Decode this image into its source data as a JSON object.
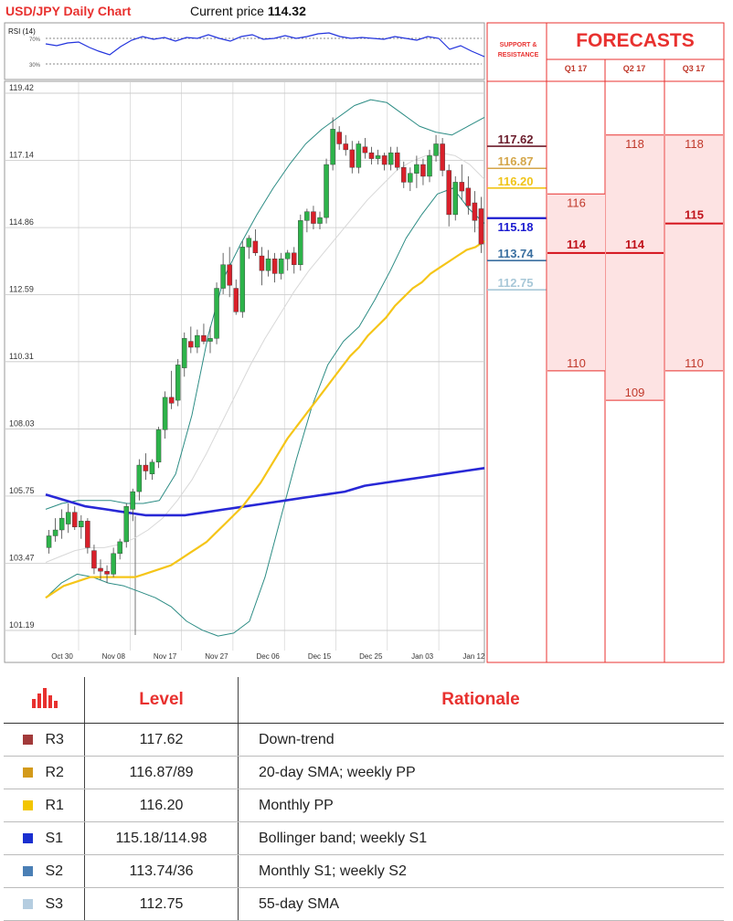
{
  "header": {
    "title": "USD/JPY Daily Chart",
    "price_label": "Current price",
    "price_value": "114.32"
  },
  "rsi": {
    "label": "RSI (14)",
    "upper": "70%",
    "lower": "30%"
  },
  "chart_data": {
    "type": "candlestick",
    "y_ticks": [
      "119.42",
      "117.14",
      "114.86",
      "112.59",
      "110.31",
      "108.03",
      "105.75",
      "103.47",
      "101.19"
    ],
    "ylim": [
      101.19,
      119.42
    ],
    "x_ticks": [
      "Oct 30",
      "Nov 08",
      "Nov 17",
      "Nov 27",
      "Dec 06",
      "Dec 15",
      "Dec 25",
      "Jan 03",
      "Jan 12"
    ],
    "candles": [
      [
        104.0,
        104.6,
        103.8,
        104.4
      ],
      [
        104.4,
        105.0,
        104.2,
        104.6
      ],
      [
        104.6,
        105.3,
        104.3,
        105.0
      ],
      [
        104.8,
        105.5,
        104.5,
        105.2
      ],
      [
        105.2,
        105.4,
        104.6,
        104.7
      ],
      [
        104.7,
        105.1,
        104.3,
        104.9
      ],
      [
        104.9,
        105.0,
        103.8,
        104.0
      ],
      [
        103.9,
        104.1,
        103.1,
        103.3
      ],
      [
        103.3,
        103.6,
        102.9,
        103.2
      ],
      [
        103.2,
        103.4,
        102.8,
        103.1
      ],
      [
        103.1,
        104.0,
        103.0,
        103.8
      ],
      [
        103.8,
        104.3,
        103.6,
        104.2
      ],
      [
        104.2,
        105.5,
        104.0,
        105.4
      ],
      [
        105.3,
        106.0,
        104.9,
        105.9
      ],
      [
        105.9,
        107.0,
        105.6,
        106.8
      ],
      [
        106.8,
        107.2,
        106.3,
        106.6
      ],
      [
        106.5,
        107.0,
        106.3,
        106.9
      ],
      [
        106.9,
        108.1,
        106.7,
        108.0
      ],
      [
        108.0,
        109.3,
        107.7,
        109.1
      ],
      [
        109.1,
        110.0,
        108.7,
        108.9
      ],
      [
        109.0,
        110.4,
        108.8,
        110.2
      ],
      [
        110.1,
        111.3,
        109.8,
        111.1
      ],
      [
        111.0,
        111.5,
        110.6,
        110.8
      ],
      [
        110.8,
        111.4,
        110.6,
        111.2
      ],
      [
        111.2,
        111.6,
        110.9,
        111.0
      ],
      [
        111.0,
        111.5,
        110.6,
        111.1
      ],
      [
        111.1,
        113.0,
        110.9,
        112.8
      ],
      [
        112.8,
        114.0,
        112.6,
        113.6
      ],
      [
        113.6,
        114.2,
        112.5,
        112.9
      ],
      [
        112.8,
        113.1,
        111.9,
        112.0
      ],
      [
        112.0,
        114.4,
        111.8,
        114.2
      ],
      [
        114.2,
        114.6,
        113.8,
        114.5
      ],
      [
        114.4,
        114.8,
        113.9,
        114.0
      ],
      [
        113.9,
        114.2,
        112.9,
        113.4
      ],
      [
        113.4,
        114.1,
        113.2,
        113.8
      ],
      [
        113.8,
        114.0,
        113.0,
        113.3
      ],
      [
        113.3,
        114.0,
        113.1,
        113.8
      ],
      [
        113.8,
        114.1,
        113.4,
        114.0
      ],
      [
        114.0,
        114.2,
        113.3,
        113.6
      ],
      [
        113.6,
        115.3,
        113.4,
        115.1
      ],
      [
        115.1,
        115.5,
        114.7,
        115.4
      ],
      [
        115.4,
        115.6,
        114.8,
        115.0
      ],
      [
        115.0,
        115.4,
        114.8,
        115.2
      ],
      [
        115.2,
        117.2,
        115.0,
        117.0
      ],
      [
        117.0,
        118.6,
        116.8,
        118.2
      ],
      [
        118.1,
        118.3,
        117.5,
        117.7
      ],
      [
        117.7,
        118.0,
        117.3,
        117.5
      ],
      [
        117.5,
        117.8,
        116.7,
        116.9
      ],
      [
        116.9,
        117.8,
        116.7,
        117.7
      ],
      [
        117.6,
        117.9,
        117.2,
        117.4
      ],
      [
        117.4,
        117.6,
        117.0,
        117.2
      ],
      [
        117.2,
        117.5,
        117.0,
        117.3
      ],
      [
        117.3,
        117.4,
        116.8,
        117.0
      ],
      [
        117.0,
        117.6,
        116.8,
        117.4
      ],
      [
        117.4,
        117.6,
        116.8,
        116.9
      ],
      [
        116.9,
        117.1,
        116.2,
        116.4
      ],
      [
        116.4,
        116.9,
        116.1,
        116.7
      ],
      [
        116.7,
        117.3,
        116.2,
        117.0
      ],
      [
        117.0,
        117.2,
        116.3,
        116.6
      ],
      [
        116.6,
        117.5,
        116.4,
        117.3
      ],
      [
        117.3,
        118.0,
        117.1,
        117.7
      ],
      [
        117.7,
        117.9,
        116.6,
        116.8
      ],
      [
        116.8,
        117.0,
        114.9,
        115.3
      ],
      [
        115.3,
        116.6,
        115.1,
        116.4
      ],
      [
        116.4,
        117.0,
        115.8,
        116.1
      ],
      [
        116.2,
        116.6,
        115.3,
        115.6
      ],
      [
        115.7,
        116.1,
        114.7,
        115.1
      ],
      [
        115.5,
        115.9,
        114.0,
        114.3
      ]
    ],
    "sma55": [
      102.3,
      102.5,
      102.7,
      102.8,
      102.9,
      103.0,
      103.0,
      103.0,
      103.0,
      103.0,
      103.0,
      103.1,
      103.2,
      103.3,
      103.4,
      103.6,
      103.8,
      104.0,
      104.2,
      104.5,
      104.8,
      105.1,
      105.4,
      105.8,
      106.2,
      106.7,
      107.2,
      107.7,
      108.1,
      108.5,
      108.9,
      109.3,
      109.7,
      110.1,
      110.5,
      110.8,
      111.2,
      111.5,
      111.8,
      112.2,
      112.5,
      112.8,
      113.0,
      113.3,
      113.5,
      113.7,
      113.9,
      114.1,
      114.2,
      114.4
    ],
    "sma200": [
      105.8,
      105.6,
      105.4,
      105.3,
      105.2,
      105.1,
      105.1,
      105.1,
      105.2,
      105.3,
      105.4,
      105.5,
      105.6,
      105.7,
      105.8,
      105.9,
      106.1,
      106.2,
      106.3,
      106.4,
      106.5,
      106.6,
      106.7
    ],
    "bb_upper": [
      105.3,
      105.5,
      105.6,
      105.6,
      105.6,
      105.5,
      105.5,
      105.6,
      106.5,
      108.5,
      111.2,
      113.2,
      114.3,
      115.3,
      116.2,
      117.0,
      117.7,
      118.2,
      118.6,
      119.0,
      119.2,
      119.1,
      118.7,
      118.3,
      118.1,
      118.0,
      118.3,
      118.6
    ],
    "bb_lower": [
      102.3,
      102.8,
      103.1,
      103.0,
      102.8,
      102.7,
      102.5,
      102.3,
      102.0,
      101.5,
      101.2,
      101.0,
      101.1,
      101.5,
      103.0,
      105.0,
      107.0,
      108.8,
      110.2,
      111.0,
      111.5,
      112.4,
      113.4,
      114.5,
      115.3,
      116.0,
      116.2,
      115.5,
      115.0
    ],
    "sma20": [
      103.5,
      103.7,
      103.9,
      104.0,
      104.0,
      104.1,
      104.3,
      104.6,
      105.0,
      105.6,
      106.3,
      107.2,
      108.2,
      109.2,
      110.2,
      111.1,
      111.9,
      112.7,
      113.4,
      114.0,
      114.6,
      115.2,
      115.8,
      116.3,
      116.8,
      117.1,
      117.3,
      117.4,
      117.3,
      117.0,
      116.5
    ],
    "levels": [
      {
        "value": "117.62",
        "color": "#6b1d2c"
      },
      {
        "value": "116.87",
        "color": "#d4a64a"
      },
      {
        "value": "116.20",
        "color": "#f0c419"
      },
      {
        "value": "115.18",
        "color": "#1b1bd0"
      },
      {
        "value": "113.74",
        "color": "#3a6fa0"
      },
      {
        "value": "112.75",
        "color": "#a8c8d8"
      }
    ],
    "support_resistance_label": "SUPPORT & RESISTANCE"
  },
  "forecasts": {
    "title": "FORECASTS",
    "quarters": [
      {
        "label": "Q1 17",
        "high": "116",
        "mid": "114",
        "low": "110"
      },
      {
        "label": "Q2 17",
        "high": "118",
        "mid": "114",
        "low": "109"
      },
      {
        "label": "Q3 17",
        "high": "118",
        "mid": "115",
        "low": "110"
      }
    ]
  },
  "table": {
    "headers": {
      "level": "Level",
      "rationale": "Rationale"
    },
    "rows": [
      {
        "tag": "R3",
        "level": "117.62",
        "rationale": "Down-trend",
        "color": "#a23a3a"
      },
      {
        "tag": "R2",
        "level": "116.87/89",
        "rationale": "20-day SMA; weekly PP",
        "color": "#d39a1a"
      },
      {
        "tag": "R1",
        "level": "116.20",
        "rationale": "Monthly PP",
        "color": "#f2c500"
      },
      {
        "tag": "S1",
        "level": "115.18/114.98",
        "rationale": "Bollinger band; weekly S1",
        "color": "#1a2fd0"
      },
      {
        "tag": "S2",
        "level": "113.74/36",
        "rationale": "Monthly S1; weekly S2",
        "color": "#4a7fb5"
      },
      {
        "tag": "S3",
        "level": "112.75",
        "rationale": "55-day SMA",
        "color": "#b5cde0"
      }
    ]
  }
}
